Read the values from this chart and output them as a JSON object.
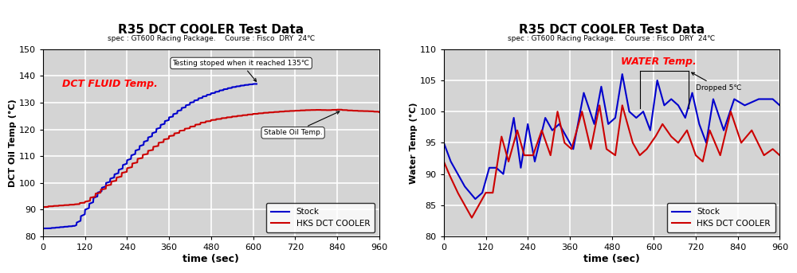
{
  "chart1": {
    "title": "R35 DCT COOLER Test Data",
    "subtitle": "spec : GT600 Racing Package.    Course : Fisco  DRY  24℃",
    "xlabel": "time (sec)",
    "ylabel": "DCT Oil Temp (°C)",
    "label_text": "DCT FLUID Temp.",
    "xlim": [
      0,
      960
    ],
    "ylim": [
      80,
      150
    ],
    "xticks": [
      0,
      120,
      240,
      360,
      480,
      600,
      720,
      840,
      960
    ],
    "yticks": [
      80,
      90,
      100,
      110,
      120,
      130,
      140,
      150
    ],
    "annotation1": "Testing stoped when it reached 135℃",
    "annotation2": "Stable Oil Temp.",
    "stock_color": "#0000cc",
    "hks_color": "#cc0000",
    "bg_color": "#d4d4d4"
  },
  "chart2": {
    "title": "R35 DCT COOLER Test Data",
    "subtitle": "spec : GT600 Racing Package.    Course : Fisco  DRY  24℃",
    "xlabel": "time (sec)",
    "ylabel": "Water Temp (°C)",
    "label_text": "WATER Temp.",
    "xlim": [
      0,
      960
    ],
    "ylim": [
      80,
      110
    ],
    "xticks": [
      0,
      120,
      240,
      360,
      480,
      600,
      720,
      840,
      960
    ],
    "yticks": [
      80,
      85,
      90,
      95,
      100,
      105,
      110
    ],
    "annotation1": "Dropped 5℃",
    "stock_color": "#0000cc",
    "hks_color": "#cc0000",
    "bg_color": "#d4d4d4"
  }
}
